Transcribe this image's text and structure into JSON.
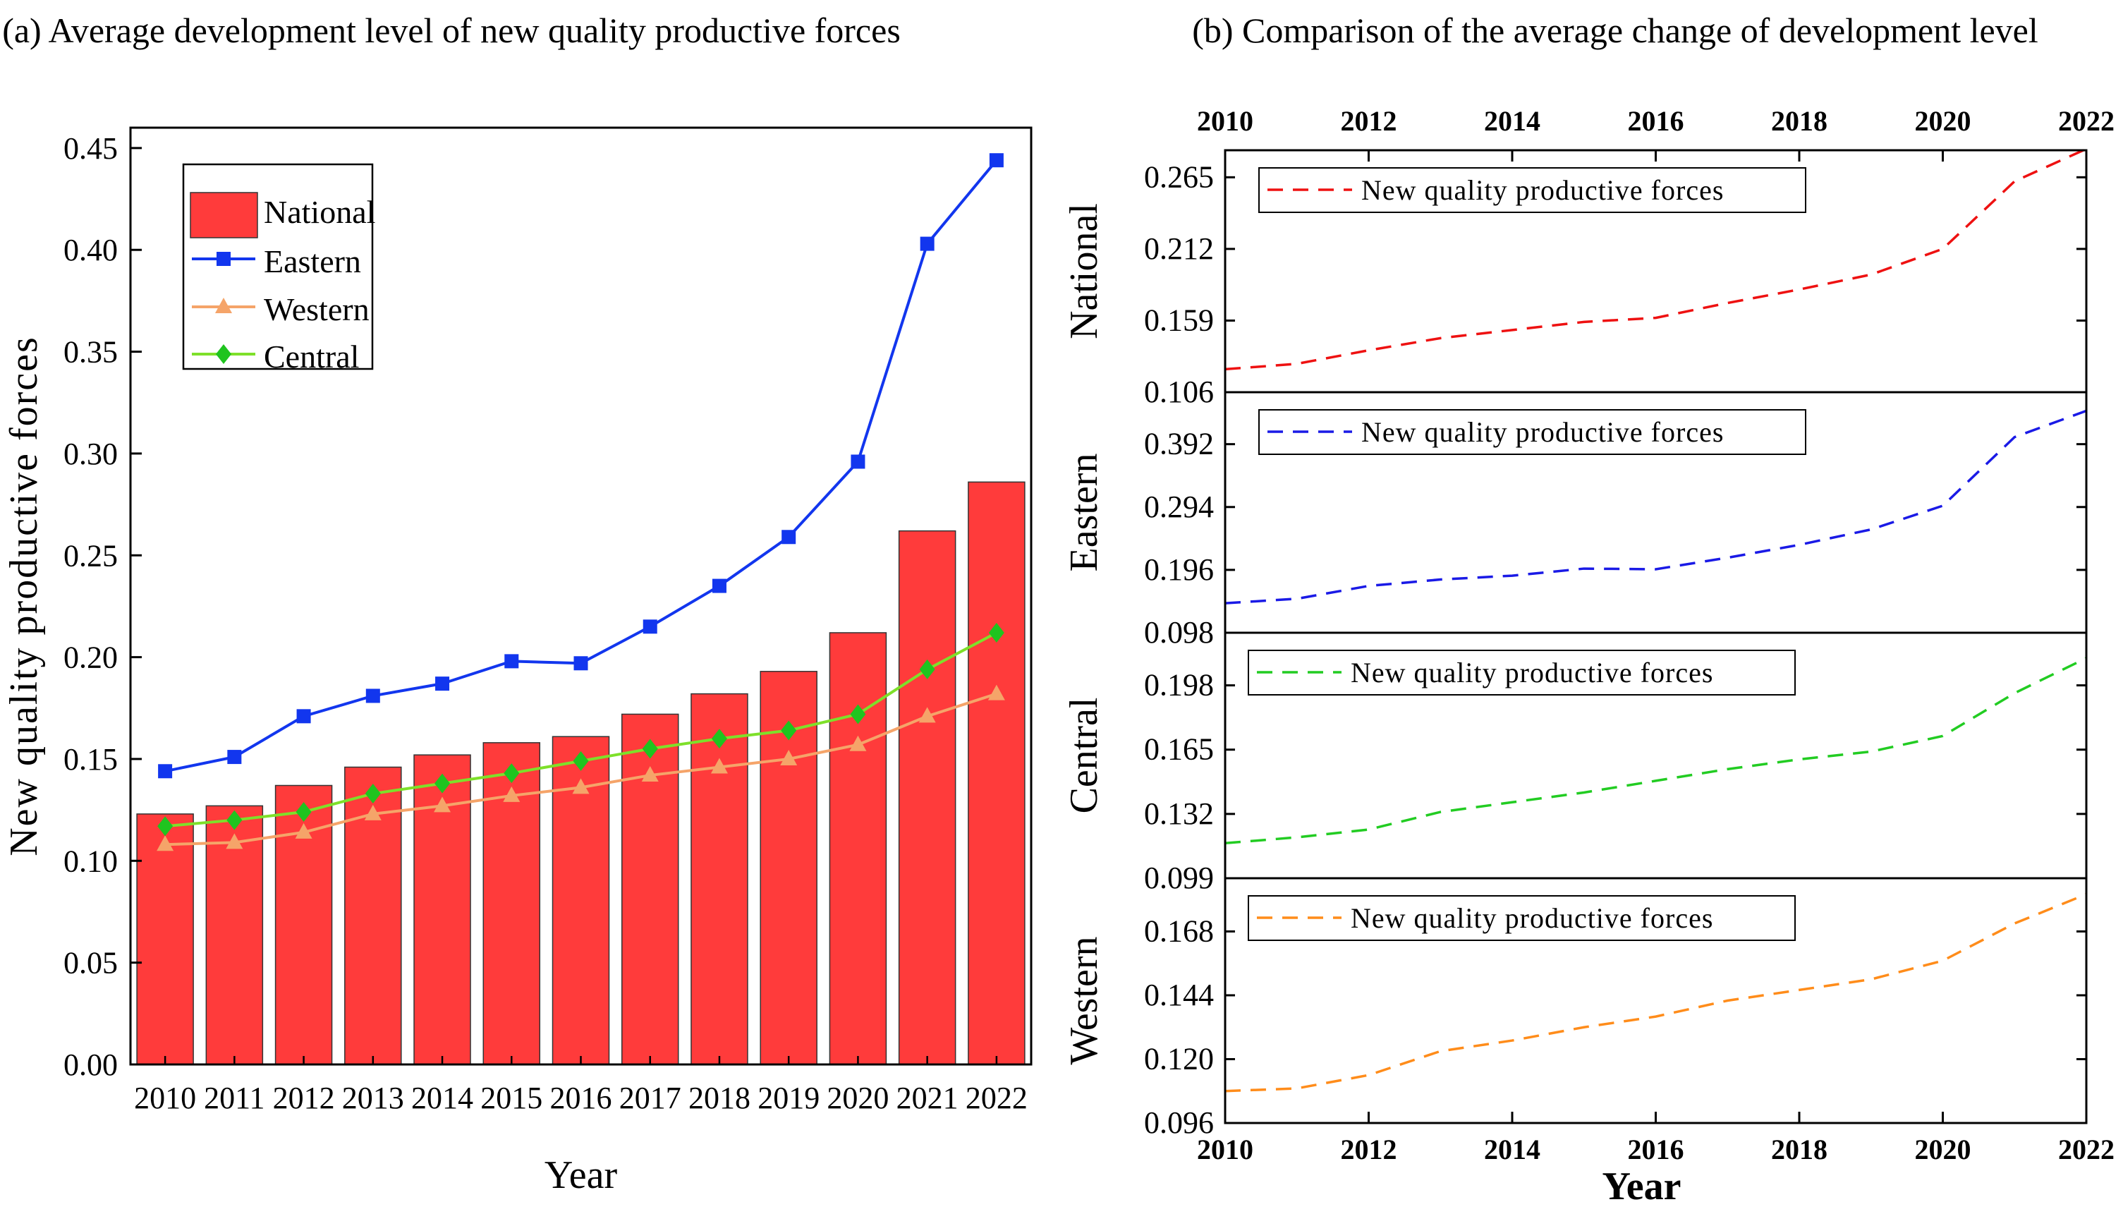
{
  "colors": {
    "national": "#ff3b3b",
    "eastern": "#1236ee",
    "western": "#f5a469",
    "central": "#7ee02a",
    "central_marker": "#1fc41f",
    "panel_national": "#ee1111",
    "panel_eastern": "#1a1ae6",
    "panel_central": "#22cc22",
    "panel_western": "#ff8c1a"
  },
  "chart_data": [
    {
      "type": "bar",
      "title": "(a) Average development level of new quality productive forces",
      "xlabel": "Year",
      "ylabel": "New quality productive forces",
      "ylim": [
        0,
        0.46
      ],
      "yticks": [
        "0.00",
        "0.05",
        "0.10",
        "0.15",
        "0.20",
        "0.25",
        "0.30",
        "0.35",
        "0.40",
        "0.45"
      ],
      "categories": [
        "2010",
        "2011",
        "2012",
        "2013",
        "2014",
        "2015",
        "2016",
        "2017",
        "2018",
        "2019",
        "2020",
        "2021",
        "2022"
      ],
      "legend_position": "top-left",
      "series": [
        {
          "name": "National",
          "kind": "bar",
          "color": "#ff3b3b",
          "marker": "",
          "values": [
            0.123,
            0.127,
            0.137,
            0.146,
            0.152,
            0.158,
            0.161,
            0.172,
            0.182,
            0.193,
            0.212,
            0.262,
            0.286
          ]
        },
        {
          "name": "Eastern",
          "kind": "line",
          "color": "#1236ee",
          "marker": "square",
          "values": [
            0.144,
            0.151,
            0.171,
            0.181,
            0.187,
            0.198,
            0.197,
            0.215,
            0.235,
            0.259,
            0.296,
            0.403,
            0.444
          ]
        },
        {
          "name": "Western",
          "kind": "line",
          "color": "#f5a469",
          "marker": "triangle",
          "values": [
            0.108,
            0.109,
            0.114,
            0.123,
            0.127,
            0.132,
            0.136,
            0.142,
            0.146,
            0.15,
            0.157,
            0.171,
            0.182
          ]
        },
        {
          "name": "Central",
          "kind": "line",
          "color": "#7ee02a",
          "marker": "diamond",
          "values": [
            0.117,
            0.12,
            0.124,
            0.133,
            0.138,
            0.143,
            0.149,
            0.155,
            0.16,
            0.164,
            0.172,
            0.194,
            0.212
          ]
        }
      ]
    },
    {
      "type": "line",
      "title": "(b) Comparison of the average change of development level",
      "xlabel": "Year",
      "xlim": [
        2010,
        2022
      ],
      "xticks": [
        "2010",
        "2012",
        "2014",
        "2016",
        "2018",
        "2020",
        "2022"
      ],
      "panels": [
        {
          "ylabel": "National",
          "legend": "New quality productive forces",
          "color": "#ee1111",
          "ylim": [
            0.106,
            0.285
          ],
          "yticks": [
            "0.106",
            "0.159",
            "0.212",
            "0.265"
          ],
          "x": [
            2010,
            2011,
            2012,
            2013,
            2014,
            2015,
            2016,
            2017,
            2018,
            2019,
            2020,
            2021,
            2022
          ],
          "y": [
            0.123,
            0.127,
            0.137,
            0.146,
            0.152,
            0.158,
            0.161,
            0.172,
            0.182,
            0.193,
            0.212,
            0.262,
            0.286
          ]
        },
        {
          "ylabel": "Eastern",
          "legend": "New quality productive forces",
          "color": "#1a1ae6",
          "ylim": [
            0.098,
            0.473
          ],
          "yticks": [
            "0.098",
            "0.196",
            "0.294",
            "0.392"
          ],
          "x": [
            2010,
            2011,
            2012,
            2013,
            2014,
            2015,
            2016,
            2017,
            2018,
            2019,
            2020,
            2021,
            2022
          ],
          "y": [
            0.144,
            0.151,
            0.171,
            0.181,
            0.187,
            0.198,
            0.197,
            0.215,
            0.235,
            0.259,
            0.296,
            0.403,
            0.444
          ]
        },
        {
          "ylabel": "Central",
          "legend": "New quality productive forces",
          "color": "#22cc22",
          "ylim": [
            0.099,
            0.225
          ],
          "yticks": [
            "0.099",
            "0.132",
            "0.165",
            "0.198"
          ],
          "x": [
            2010,
            2011,
            2012,
            2013,
            2014,
            2015,
            2016,
            2017,
            2018,
            2019,
            2020,
            2021,
            2022
          ],
          "y": [
            0.117,
            0.12,
            0.124,
            0.133,
            0.138,
            0.143,
            0.149,
            0.155,
            0.16,
            0.164,
            0.172,
            0.194,
            0.212
          ]
        },
        {
          "ylabel": "Western",
          "legend": "New quality productive forces",
          "color": "#ff8c1a",
          "ylim": [
            0.096,
            0.188
          ],
          "yticks": [
            "0.096",
            "0.120",
            "0.144",
            "0.168"
          ],
          "x": [
            2010,
            2011,
            2012,
            2013,
            2014,
            2015,
            2016,
            2017,
            2018,
            2019,
            2020,
            2021,
            2022
          ],
          "y": [
            0.108,
            0.109,
            0.114,
            0.123,
            0.127,
            0.132,
            0.136,
            0.142,
            0.146,
            0.15,
            0.157,
            0.171,
            0.182
          ]
        }
      ]
    }
  ]
}
